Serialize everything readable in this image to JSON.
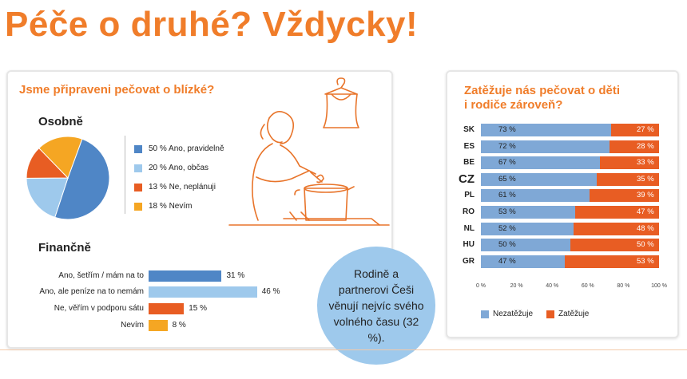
{
  "title": "Péče o druhé? Vždycky!",
  "colors": {
    "accent": "#f07d2a",
    "blue": "#4f86c6",
    "lightblue": "#9ec9ec",
    "orange": "#e85d23",
    "yellow": "#f5a623"
  },
  "left": {
    "title": "Jsme připraveni pečovat o blízké?",
    "osobne": "Osobně",
    "financne": "Finančně"
  },
  "bubble": {
    "text": "Rodině a partnerovi Češi věnují nejvíc svého volného času (32 %)."
  },
  "right": {
    "title_line1": "Zatěžuje nás pečovat o děti",
    "title_line2": "i rodiče zároveň?"
  },
  "chart_data": [
    {
      "type": "pie",
      "title": "Osobně",
      "slices": [
        {
          "label": "50 % Ano, pravidelně",
          "value": 50,
          "color": "#4f86c6"
        },
        {
          "label": "20 % Ano, občas",
          "value": 20,
          "color": "#9ec9ec"
        },
        {
          "label": "13 % Ne, neplánuji",
          "value": 13,
          "color": "#e85d23"
        },
        {
          "label": "18 % Nevím",
          "value": 18,
          "color": "#f5a623"
        }
      ]
    },
    {
      "type": "bar",
      "title": "Finančně",
      "categories": [
        "Ano, šetřím / mám na to",
        "Ano, ale peníze na to nemám",
        "Ne, věřím v podporu sátu",
        "Nevím"
      ],
      "values": [
        31,
        46,
        15,
        8
      ],
      "labels": [
        "31 %",
        "46 %",
        "15 %",
        "8 %"
      ],
      "colors": [
        "#4f86c6",
        "#9ec9ec",
        "#e85d23",
        "#f5a623"
      ]
    },
    {
      "type": "bar",
      "title": "Zatěžuje nás pečovat o děti i rodiče zároveň?",
      "categories": [
        "SK",
        "ES",
        "BE",
        "CZ",
        "PL",
        "RO",
        "NL",
        "HU",
        "GR"
      ],
      "series": [
        {
          "name": "Nezatěžuje",
          "values": [
            73,
            72,
            67,
            65,
            61,
            53,
            52,
            50,
            47
          ],
          "color": "#7fa8d6"
        },
        {
          "name": "Zatěžuje",
          "values": [
            27,
            28,
            33,
            35,
            39,
            47,
            48,
            50,
            53
          ],
          "color": "#e85d23"
        }
      ],
      "xticks": [
        "0 %",
        "20 %",
        "40 %",
        "60 %",
        "80 %",
        "100 %"
      ],
      "xlim": [
        0,
        100
      ],
      "stacked": true
    }
  ]
}
